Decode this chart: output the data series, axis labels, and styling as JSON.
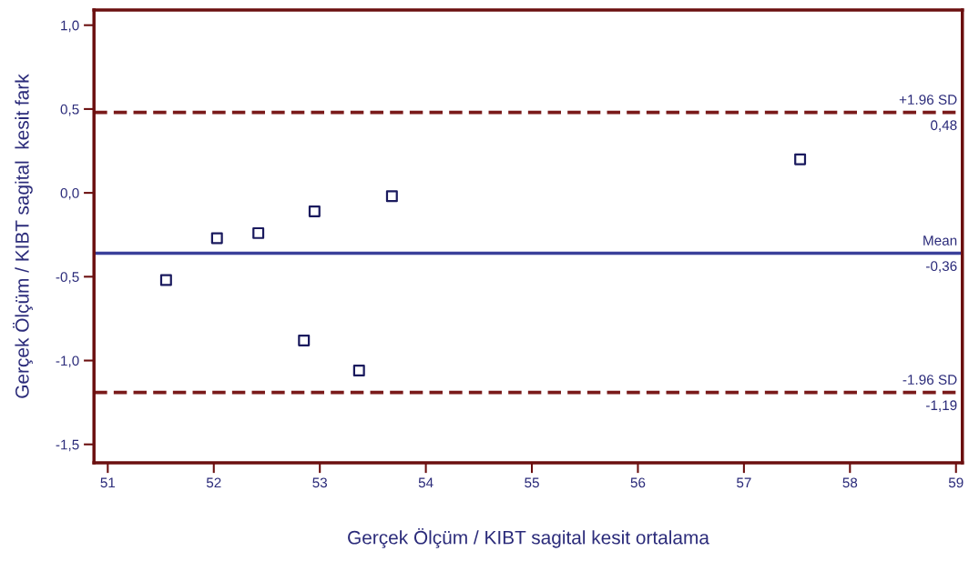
{
  "chart_data": {
    "type": "scatter",
    "xlabel": "Gerçek Ölçüm / KIBT sagital kesit ortalama",
    "ylabel": "Gerçek Ölçüm / KIBT sagital  kesit fark",
    "x": [
      51.55,
      52.03,
      52.42,
      52.95,
      53.68,
      52.85,
      53.37,
      57.53
    ],
    "values": [
      -0.52,
      -0.27,
      -0.24,
      -0.11,
      -0.02,
      -0.88,
      -1.06,
      0.2
    ],
    "color": "#1a1a5e",
    "marker": "square",
    "xlim": [
      50.87,
      59.06
    ],
    "ylim": [
      -1.61,
      1.09
    ],
    "xticks": [
      51,
      52,
      53,
      54,
      55,
      56,
      57,
      58,
      59
    ],
    "yticks": [
      {
        "value": 1.0,
        "label": "1,0"
      },
      {
        "value": 0.5,
        "label": "0,5"
      },
      {
        "value": 0.0,
        "label": "0,0"
      },
      {
        "value": -0.5,
        "label": "-0,5"
      },
      {
        "value": -1.0,
        "label": "-1,0"
      },
      {
        "value": -1.5,
        "label": "-1,5"
      }
    ],
    "ref_lines": [
      {
        "axis": "y",
        "value": 0.48,
        "label": "+1.96 SD",
        "color": "#7a1a1a",
        "line_style": "dashed"
      },
      {
        "axis": "y",
        "value": -0.36,
        "label": "Mean",
        "color": "#3a3f9a",
        "line_style": "solid"
      },
      {
        "axis": "y",
        "value": -1.19,
        "label": "-1.96 SD",
        "color": "#7a1a1a",
        "line_style": "dashed"
      }
    ],
    "annotations": [
      {
        "text": "0,48",
        "y": 0.48
      },
      {
        "text": "-0,36",
        "y": -0.36
      },
      {
        "text": "-1,19",
        "y": -1.19
      }
    ],
    "grid": false
  }
}
